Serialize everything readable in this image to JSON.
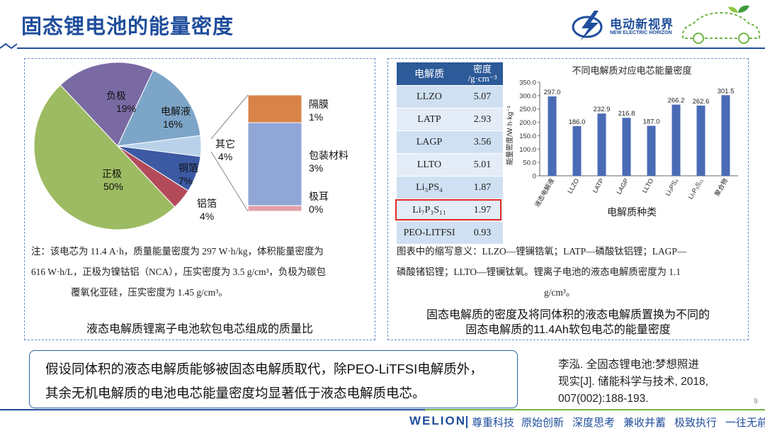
{
  "slide": {
    "title": "固态锂电池的能量密度",
    "page_number": "9"
  },
  "logo": {
    "cn": "电动新视界",
    "en": "NEW ELECTRIC HORIZON"
  },
  "left_panel": {
    "pie": {
      "slices": [
        {
          "label": "负极",
          "pct": "19%",
          "value": 19,
          "color": "#7a6aa4"
        },
        {
          "label": "电解液",
          "pct": "16%",
          "value": 16,
          "color": "#7da5c8"
        },
        {
          "label": "其它",
          "pct": "4%",
          "value": 4,
          "color": "#b9d2ea"
        },
        {
          "label": "铜箔",
          "pct": "7%",
          "value": 7,
          "color": "#3c59a3"
        },
        {
          "label": "铝箔",
          "pct": "4%",
          "value": 4,
          "color": "#b24a5a"
        },
        {
          "label": "正极",
          "pct": "50%",
          "value": 50,
          "color": "#9dbb62"
        }
      ],
      "breakout": [
        {
          "label": "隔膜",
          "pct": "1%",
          "value": 1,
          "color": "#d9834a"
        },
        {
          "label": "包装材料",
          "pct": "3%",
          "value": 3,
          "color": "#8fa6d6"
        },
        {
          "label": "极耳",
          "pct": "0%",
          "value": 0.2,
          "color": "#e3a0a6"
        }
      ]
    },
    "note_line1": "注：该电芯为 11.4 A·h，质量能量密度为 297 W·h/kg，体积能量密度为",
    "note_line2": "616 W·h/L，正极为镍钴铝（NCA），压实密度为 3.5 g/cm³，负极为碳包",
    "note_line3": "覆氧化亚硅，压实密度为 1.45 g/cm³。",
    "caption": "液态电解质锂离子电池软包电芯组成的质量比"
  },
  "right_panel": {
    "table": {
      "col1_header": "电解质",
      "col2_header_line1": "密度",
      "col2_header_line2": "/g·cm⁻³",
      "rows": [
        {
          "name": "LLZO",
          "density": "5.07"
        },
        {
          "name": "LATP",
          "density": "2.93"
        },
        {
          "name": "LAGP",
          "density": "3.56"
        },
        {
          "name": "LLTO",
          "density": "5.01"
        },
        {
          "name": "Li₃PS₄",
          "density": "1.87"
        },
        {
          "name": "Li₇P₃S₁₁",
          "density": "1.97"
        },
        {
          "name": "PEO-LITFSI",
          "density": "0.93"
        }
      ]
    },
    "chart_data": {
      "type": "bar",
      "title": "不同电解质对应电芯能量密度",
      "xlabel": "电解质种类",
      "ylabel": "能量密度/W·h·kg⁻¹",
      "ylim": [
        0,
        350
      ],
      "yticks": [
        "0",
        "50.0",
        "100.0",
        "150.0",
        "200.0",
        "250.0",
        "300.0",
        "350.0"
      ],
      "categories": [
        "液态电解液",
        "LLZO",
        "LATP",
        "LAGP",
        "LLTO",
        "Li₃PS₄",
        "Li₇P₃S₁₁",
        "聚合物"
      ],
      "values": [
        297.0,
        186.0,
        232.9,
        216.8,
        187.0,
        266.2,
        262.6,
        301.5
      ],
      "value_labels": [
        "297.0",
        "186.0",
        "232.9",
        "216.8",
        "187.0",
        "266.2",
        "262.6",
        "301.5"
      ],
      "bar_color": "#4a6bb5"
    },
    "note_line1": "图表中的缩写意义：LLZO—锂镧锆氧；LATP—磷酸钛铝锂；LAGP—",
    "note_line2": "磷酸锗铝锂；LLTO—锂镧钛氧。锂离子电池的液态电解质密度为 1.1",
    "note_line3": "g/cm³。",
    "caption_line1": "固态电解质的密度及将同体积的液态电解质置换为不同的",
    "caption_line2": "固态电解质的11.4Ah软包电芯的能量密度"
  },
  "callout": {
    "line1": "假设同体积的液态电解质能够被固态电解质取代，除PEO-LiTFSI电解质外，",
    "line2": "其余无机电解质的电池电芯能量密度均显著低于液态电解质电芯。"
  },
  "reference": {
    "line1": "李泓. 全固态锂电池:梦想照进",
    "line2": "现实[J]. 储能科学与技术, 2018,",
    "line3": "007(002):188-193."
  },
  "footer": {
    "brand": "WELION",
    "slogans": [
      "尊重科技",
      "原始创新",
      "深度思考",
      "兼收并蓄",
      "极致执行",
      "一往无前"
    ]
  },
  "colors": {
    "accent": "#1f4e9c",
    "green": "#6fb544"
  }
}
